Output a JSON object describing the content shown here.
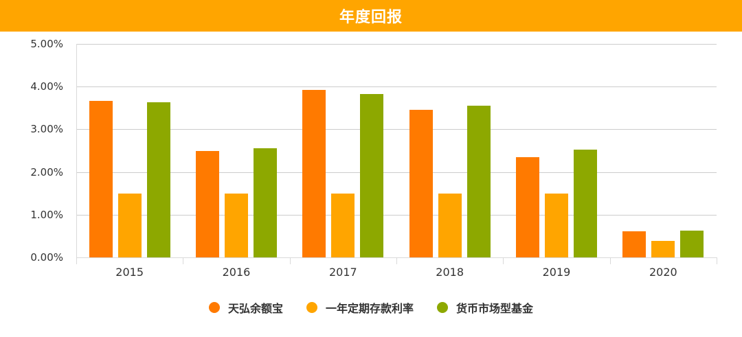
{
  "header": {
    "title": "年度回报"
  },
  "chart_data": {
    "type": "bar",
    "title": "年度回报",
    "xlabel": "",
    "ylabel": "",
    "ylim": [
      0,
      5
    ],
    "y_ticks": [
      "0.00%",
      "1.00%",
      "2.00%",
      "3.00%",
      "4.00%",
      "5.00%"
    ],
    "grid": true,
    "legend_position": "bottom",
    "categories": [
      "2015",
      "2016",
      "2017",
      "2018",
      "2019",
      "2020"
    ],
    "series": [
      {
        "name": "天弘余额宝",
        "color": "#FF7A00",
        "values": [
          3.66,
          2.5,
          3.92,
          3.46,
          2.35,
          0.61
        ]
      },
      {
        "name": "一年定期存款利率",
        "color": "#FFA500",
        "values": [
          1.5,
          1.5,
          1.5,
          1.5,
          1.5,
          0.39
        ]
      },
      {
        "name": "货币市场型基金",
        "color": "#8DA800",
        "values": [
          3.64,
          2.55,
          3.82,
          3.56,
          2.52,
          0.62
        ]
      }
    ]
  }
}
